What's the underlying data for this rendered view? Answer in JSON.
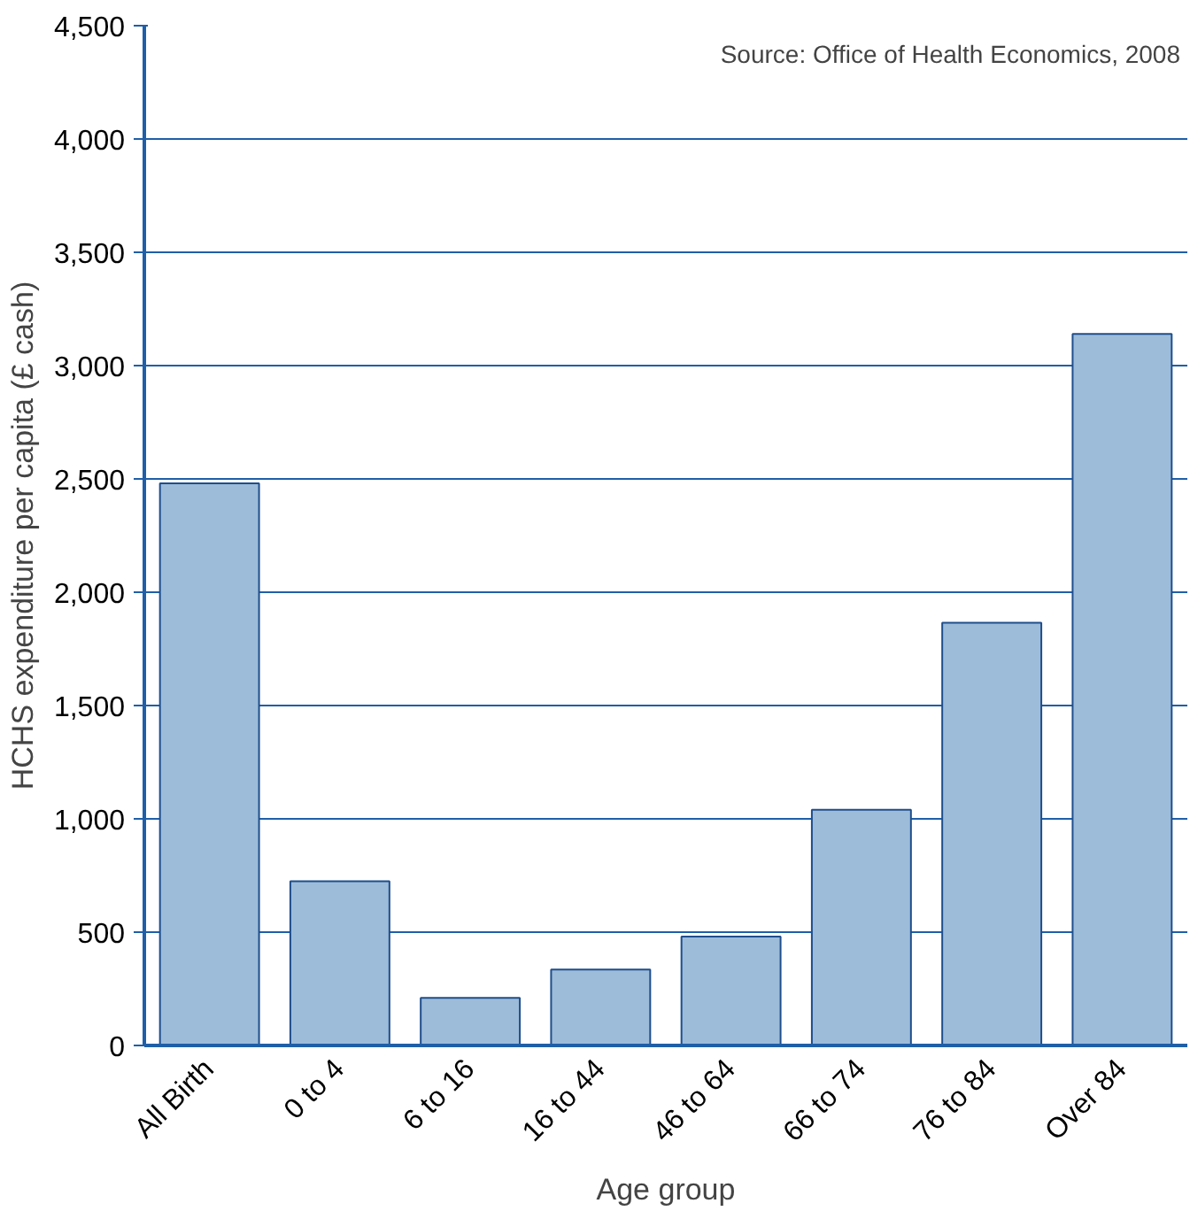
{
  "chart_data": {
    "type": "bar",
    "xlabel": "Age group",
    "ylabel": "HCHS expenditure per capita (£ cash)",
    "categories": [
      "All Birth",
      "0 to 4",
      "6 to 16",
      "16 to 44",
      "46 to 64",
      "66 to 74",
      "76 to 84",
      "Over 84"
    ],
    "values": [
      2480,
      725,
      210,
      335,
      480,
      1040,
      1865,
      3140
    ],
    "color": "#9dbcd9",
    "ylim": [
      0,
      4500
    ],
    "yticks": [
      {
        "value": 0,
        "label": "0"
      },
      {
        "value": 500,
        "label": "500"
      },
      {
        "value": 1000,
        "label": "1,000"
      },
      {
        "value": 1500,
        "label": "1,500"
      },
      {
        "value": 2000,
        "label": "2,000"
      },
      {
        "value": 2500,
        "label": "2,500"
      },
      {
        "value": 3000,
        "label": "3,000"
      },
      {
        "value": 3500,
        "label": "3,500"
      },
      {
        "value": 4000,
        "label": "4,000"
      },
      {
        "value": 4500,
        "label": "4,500"
      }
    ],
    "grid": "y",
    "annotations": [
      "Source: Office of Health Economics, 2008"
    ]
  }
}
